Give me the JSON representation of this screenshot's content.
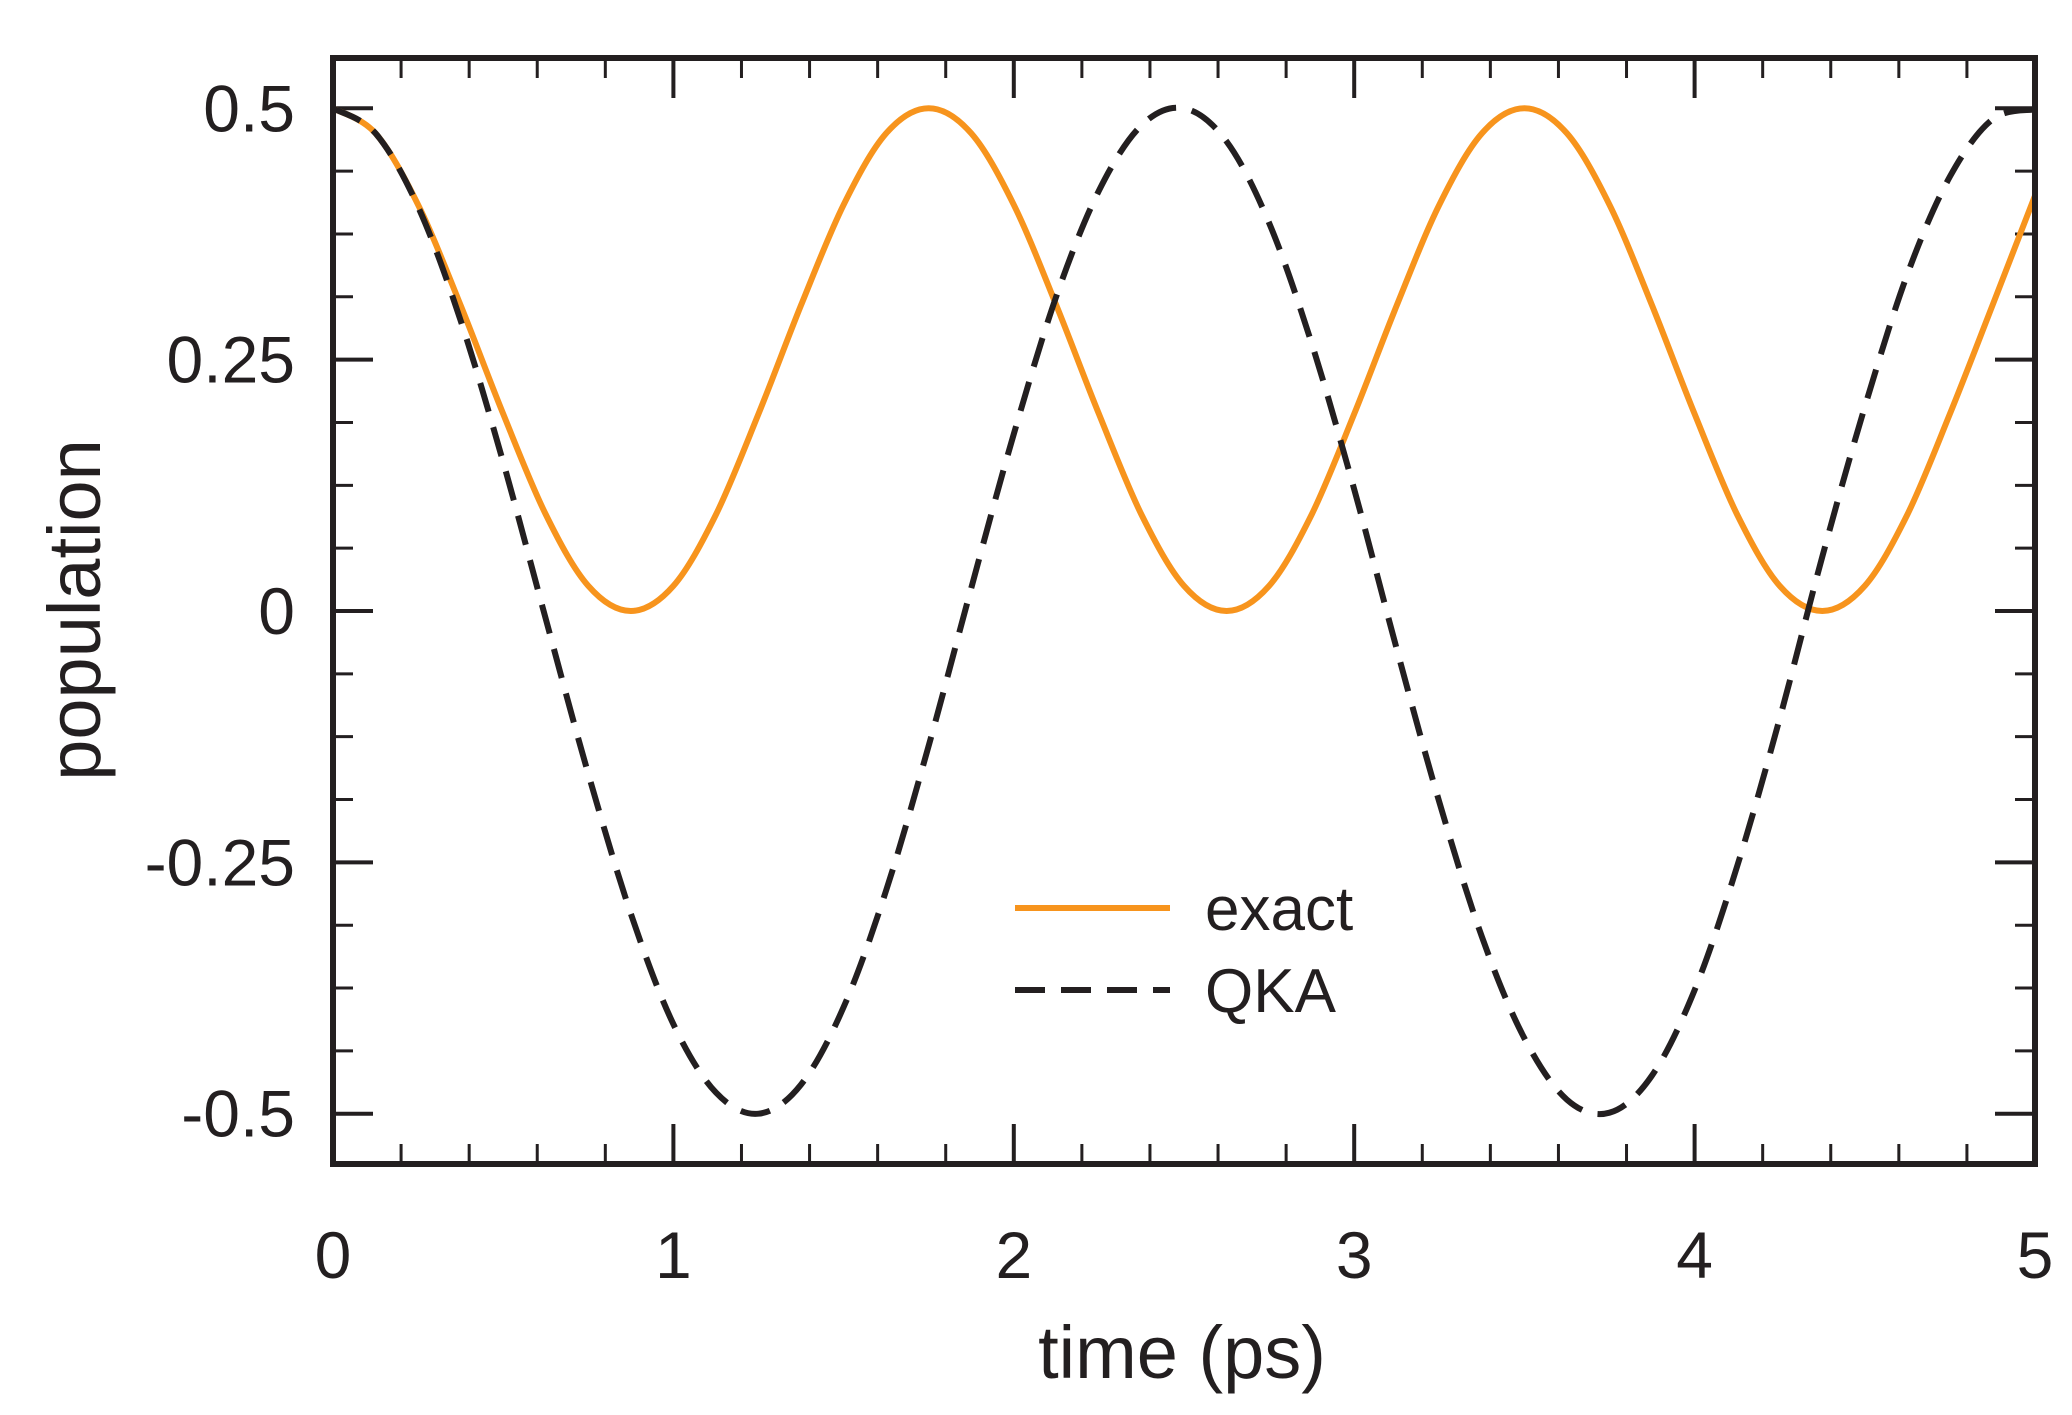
{
  "chart_data": {
    "type": "line",
    "title": "",
    "xlabel": "time (ps)",
    "ylabel": "population",
    "xlim": [
      0,
      5
    ],
    "ylim": [
      -0.55,
      0.55
    ],
    "xticks": [
      0,
      1,
      2,
      3,
      4,
      5
    ],
    "xtick_labels": [
      "0",
      "1",
      "2",
      "3",
      "4",
      "5"
    ],
    "yticks": [
      0.5,
      0.25,
      0,
      -0.25,
      -0.5
    ],
    "ytick_labels": [
      "0.5",
      "0.25",
      "0",
      "-0.25",
      "-0.5"
    ],
    "x_minor_step": 0.2,
    "y_minor_step": 0.0625,
    "grid": false,
    "legend_position": "lower-center",
    "series": [
      {
        "name": "exact",
        "style": "solid",
        "color": "#f7941d",
        "x": [
          0,
          0.125,
          0.25,
          0.375,
          0.5,
          0.625,
          0.75,
          0.875,
          1.0,
          1.125,
          1.25,
          1.375,
          1.5,
          1.625,
          1.75,
          1.875,
          2.0,
          2.125,
          2.25,
          2.375,
          2.5,
          2.625,
          2.75,
          2.875,
          3.0,
          3.125,
          3.25,
          3.375,
          3.5,
          3.625,
          3.75,
          3.875,
          4.0,
          4.125,
          4.25,
          4.375,
          4.5,
          4.625,
          4.75,
          4.875,
          5.0
        ],
        "values": [
          0.5,
          0.475,
          0.404,
          0.304,
          0.196,
          0.096,
          0.025,
          0.0,
          0.025,
          0.096,
          0.196,
          0.304,
          0.404,
          0.475,
          0.5,
          0.475,
          0.404,
          0.304,
          0.196,
          0.096,
          0.025,
          0.0,
          0.025,
          0.096,
          0.196,
          0.304,
          0.404,
          0.475,
          0.5,
          0.475,
          0.404,
          0.304,
          0.196,
          0.096,
          0.025,
          0.0,
          0.025,
          0.096,
          0.196,
          0.304,
          0.413
        ]
      },
      {
        "name": "QKA",
        "style": "dashed",
        "color": "#231f20",
        "x": [
          0,
          0.125,
          0.25,
          0.375,
          0.5,
          0.625,
          0.75,
          0.875,
          1.0,
          1.125,
          1.25,
          1.375,
          1.5,
          1.625,
          1.75,
          1.875,
          2.0,
          2.125,
          2.25,
          2.375,
          2.5,
          2.625,
          2.75,
          2.875,
          3.0,
          3.125,
          3.25,
          3.375,
          3.5,
          3.625,
          3.75,
          3.875,
          4.0,
          4.125,
          4.25,
          4.375,
          4.5,
          4.625,
          4.75,
          4.875,
          5.0
        ],
        "values": [
          0.5,
          0.475,
          0.402,
          0.289,
          0.148,
          -0.008,
          -0.162,
          -0.301,
          -0.411,
          -0.479,
          -0.5,
          -0.471,
          -0.394,
          -0.278,
          -0.134,
          0.023,
          0.176,
          0.313,
          0.418,
          0.483,
          0.5,
          0.467,
          0.386,
          0.266,
          0.121,
          -0.038,
          -0.19,
          -0.324,
          -0.425,
          -0.486,
          -0.499,
          -0.462,
          -0.377,
          -0.254,
          -0.107,
          0.054,
          0.203,
          0.335,
          0.432,
          0.489,
          0.499
        ]
      }
    ]
  }
}
